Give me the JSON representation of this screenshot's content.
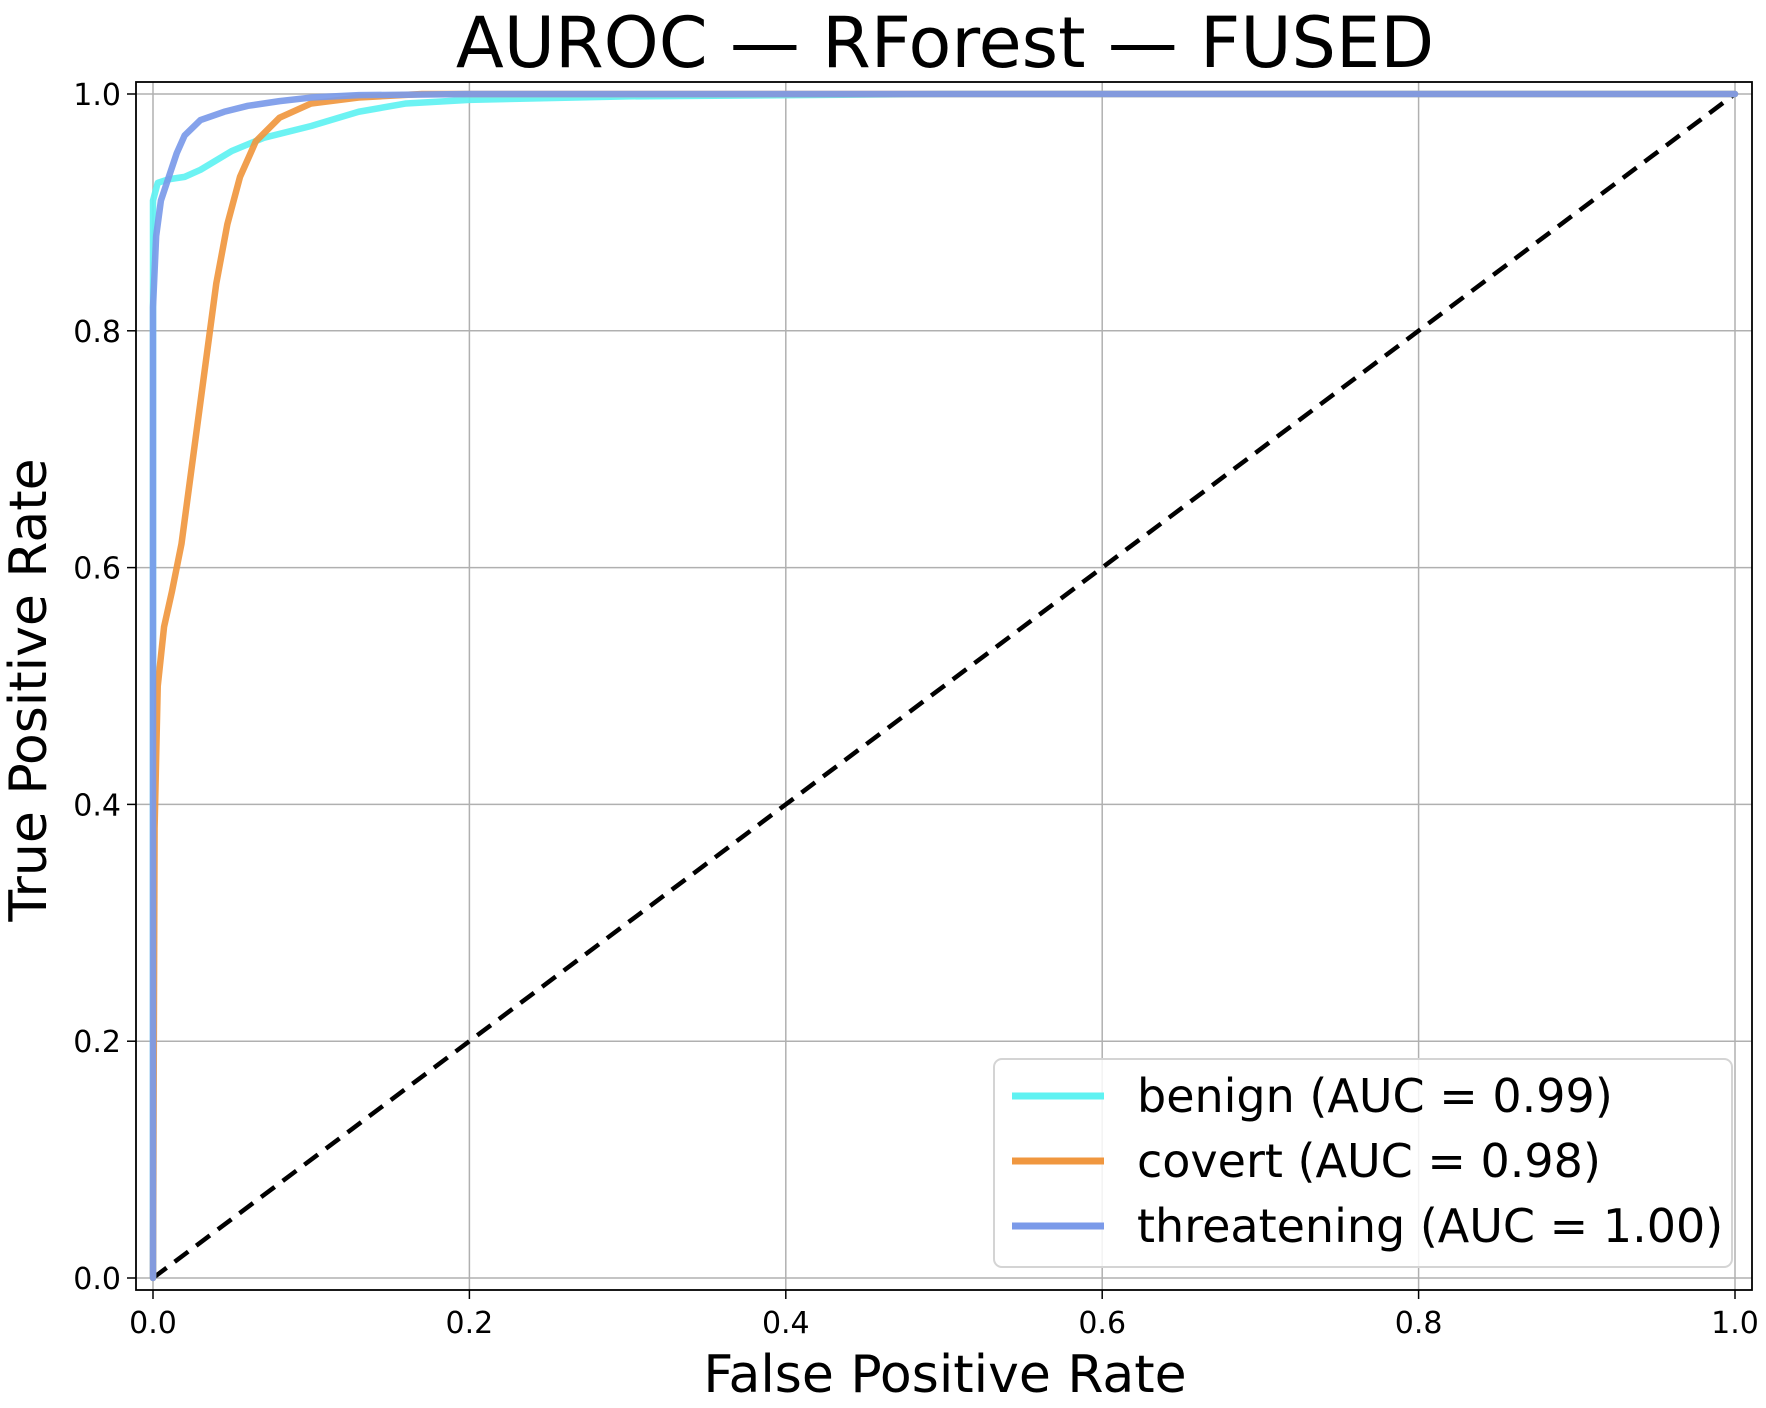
{
  "chart_data": {
    "type": "line",
    "title": "AUROC — RForest — FUSED",
    "xlabel": "False Positive Rate",
    "ylabel": "True Positive Rate",
    "xlim": [
      0,
      1
    ],
    "ylim": [
      0,
      1
    ],
    "xticks": [
      "0.0",
      "0.2",
      "0.4",
      "0.6",
      "0.8",
      "1.0"
    ],
    "yticks": [
      "0.0",
      "0.2",
      "0.4",
      "0.6",
      "0.8",
      "1.0"
    ],
    "grid": true,
    "legend_position": "lower-right",
    "reference_line": {
      "style": "dashed",
      "color": "#000000",
      "x": [
        0,
        1
      ],
      "y": [
        0,
        1
      ]
    },
    "series": [
      {
        "name": "benign (AUC = 0.99)",
        "color": "#5ff2f2",
        "x": [
          0,
          0.0,
          0.003,
          0.01,
          0.02,
          0.03,
          0.05,
          0.07,
          0.1,
          0.13,
          0.16,
          0.2,
          0.3,
          0.5,
          1.0
        ],
        "y": [
          0,
          0.91,
          0.925,
          0.928,
          0.93,
          0.936,
          0.952,
          0.963,
          0.973,
          0.985,
          0.992,
          0.995,
          0.998,
          1.0,
          1.0
        ]
      },
      {
        "name": "covert (AUC = 0.98)",
        "color": "#f0973f",
        "x": [
          0,
          0.001,
          0.003,
          0.007,
          0.012,
          0.018,
          0.022,
          0.028,
          0.034,
          0.04,
          0.047,
          0.055,
          0.065,
          0.08,
          0.1,
          0.13,
          0.17,
          0.25,
          1.0
        ],
        "y": [
          0,
          0.38,
          0.5,
          0.55,
          0.58,
          0.62,
          0.66,
          0.72,
          0.78,
          0.84,
          0.89,
          0.93,
          0.96,
          0.98,
          0.992,
          0.997,
          1.0,
          1.0,
          1.0
        ],
        "y_note_hidden": null
      },
      {
        "name": "threatening (AUC = 1.00)",
        "color": "#7b9ae9",
        "x": [
          0,
          0.0,
          0.002,
          0.005,
          0.01,
          0.015,
          0.02,
          0.03,
          0.045,
          0.06,
          0.08,
          0.1,
          0.13,
          0.2,
          1.0
        ],
        "y": [
          0,
          0.82,
          0.88,
          0.91,
          0.93,
          0.95,
          0.965,
          0.978,
          0.985,
          0.99,
          0.994,
          0.997,
          0.999,
          1.0,
          1.0
        ]
      }
    ]
  }
}
